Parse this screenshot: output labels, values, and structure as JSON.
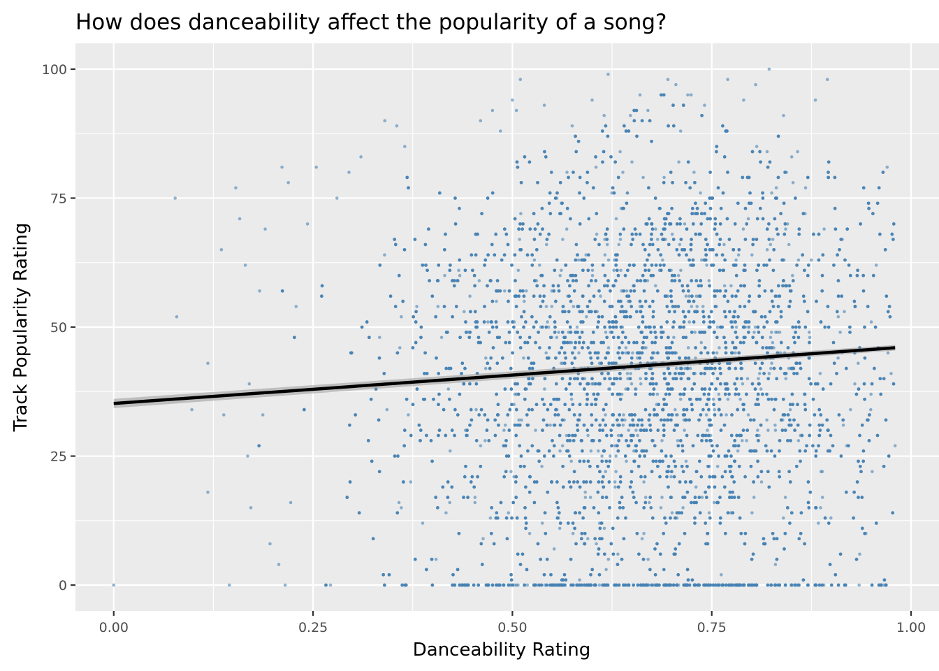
{
  "chart_data": {
    "type": "scatter",
    "title": "How does danceability affect the popularity of a song?",
    "xlabel": "Danceability Rating",
    "ylabel": "Track Popularity Rating",
    "xlim": [
      -0.048,
      1.035
    ],
    "ylim": [
      -5,
      105
    ],
    "x_ticks": [
      0.0,
      0.25,
      0.5,
      0.75,
      1.0
    ],
    "x_tick_labels": [
      "0.00",
      "0.25",
      "0.50",
      "0.75",
      "1.00"
    ],
    "y_ticks": [
      0,
      25,
      50,
      75,
      100
    ],
    "y_tick_labels": [
      "0",
      "25",
      "50",
      "75",
      "100"
    ],
    "grid": true,
    "legend": "none",
    "colors": {
      "point": "#4682b4",
      "trend_line": "#000000",
      "confidence_band": "#999999",
      "panel_background": "#ebebeb",
      "grid": "#ffffff"
    },
    "point_opacity": 0.6,
    "trend_line": {
      "type": "linear",
      "x": [
        0.0,
        0.98
      ],
      "y": [
        35.2,
        46.0
      ]
    },
    "distribution_summary": {
      "x_range": [
        0.0,
        0.98
      ],
      "y_range": [
        0,
        100
      ],
      "dense_x_range": [
        0.45,
        0.85
      ],
      "peak_x": 0.7
    },
    "points": [
      {
        "x": 0.0,
        "y": 0
      },
      {
        "x": 0.077,
        "y": 75
      },
      {
        "x": 0.079,
        "y": 52
      },
      {
        "x": 0.098,
        "y": 34
      },
      {
        "x": 0.118,
        "y": 18
      },
      {
        "x": 0.118,
        "y": 43
      },
      {
        "x": 0.135,
        "y": 65
      },
      {
        "x": 0.138,
        "y": 33
      },
      {
        "x": 0.145,
        "y": 0
      },
      {
        "x": 0.153,
        "y": 77
      },
      {
        "x": 0.158,
        "y": 71
      },
      {
        "x": 0.165,
        "y": 62
      },
      {
        "x": 0.168,
        "y": 25
      },
      {
        "x": 0.17,
        "y": 39
      },
      {
        "x": 0.172,
        "y": 15
      },
      {
        "x": 0.183,
        "y": 57
      },
      {
        "x": 0.187,
        "y": 33
      },
      {
        "x": 0.19,
        "y": 69
      },
      {
        "x": 0.196,
        "y": 8
      },
      {
        "x": 0.207,
        "y": 4
      },
      {
        "x": 0.211,
        "y": 81
      },
      {
        "x": 0.215,
        "y": 0
      },
      {
        "x": 0.219,
        "y": 78
      },
      {
        "x": 0.222,
        "y": 16
      },
      {
        "x": 0.243,
        "y": 70
      },
      {
        "x": 0.254,
        "y": 81
      },
      {
        "x": 0.28,
        "y": 75
      },
      {
        "x": 0.295,
        "y": 80
      },
      {
        "x": 0.31,
        "y": 83
      },
      {
        "x": 0.34,
        "y": 90
      },
      {
        "x": 0.355,
        "y": 89
      },
      {
        "x": 0.365,
        "y": 85
      },
      {
        "x": 0.46,
        "y": 90
      },
      {
        "x": 0.475,
        "y": 92
      },
      {
        "x": 0.485,
        "y": 88
      },
      {
        "x": 0.5,
        "y": 94
      },
      {
        "x": 0.505,
        "y": 92
      },
      {
        "x": 0.51,
        "y": 98
      },
      {
        "x": 0.54,
        "y": 93
      },
      {
        "x": 0.575,
        "y": 89
      },
      {
        "x": 0.6,
        "y": 94
      },
      {
        "x": 0.615,
        "y": 91
      },
      {
        "x": 0.62,
        "y": 99
      },
      {
        "x": 0.66,
        "y": 95
      },
      {
        "x": 0.67,
        "y": 92
      },
      {
        "x": 0.695,
        "y": 98
      },
      {
        "x": 0.705,
        "y": 97
      },
      {
        "x": 0.72,
        "y": 95
      },
      {
        "x": 0.77,
        "y": 98
      },
      {
        "x": 0.79,
        "y": 94
      },
      {
        "x": 0.805,
        "y": 97
      },
      {
        "x": 0.822,
        "y": 100
      },
      {
        "x": 0.84,
        "y": 91
      },
      {
        "x": 0.88,
        "y": 94
      },
      {
        "x": 0.895,
        "y": 98
      },
      {
        "x": 0.97,
        "y": 81
      },
      {
        "x": 0.98,
        "y": 27
      },
      {
        "x": 0.975,
        "y": 41
      },
      {
        "x": 0.965,
        "y": 0
      }
    ]
  }
}
